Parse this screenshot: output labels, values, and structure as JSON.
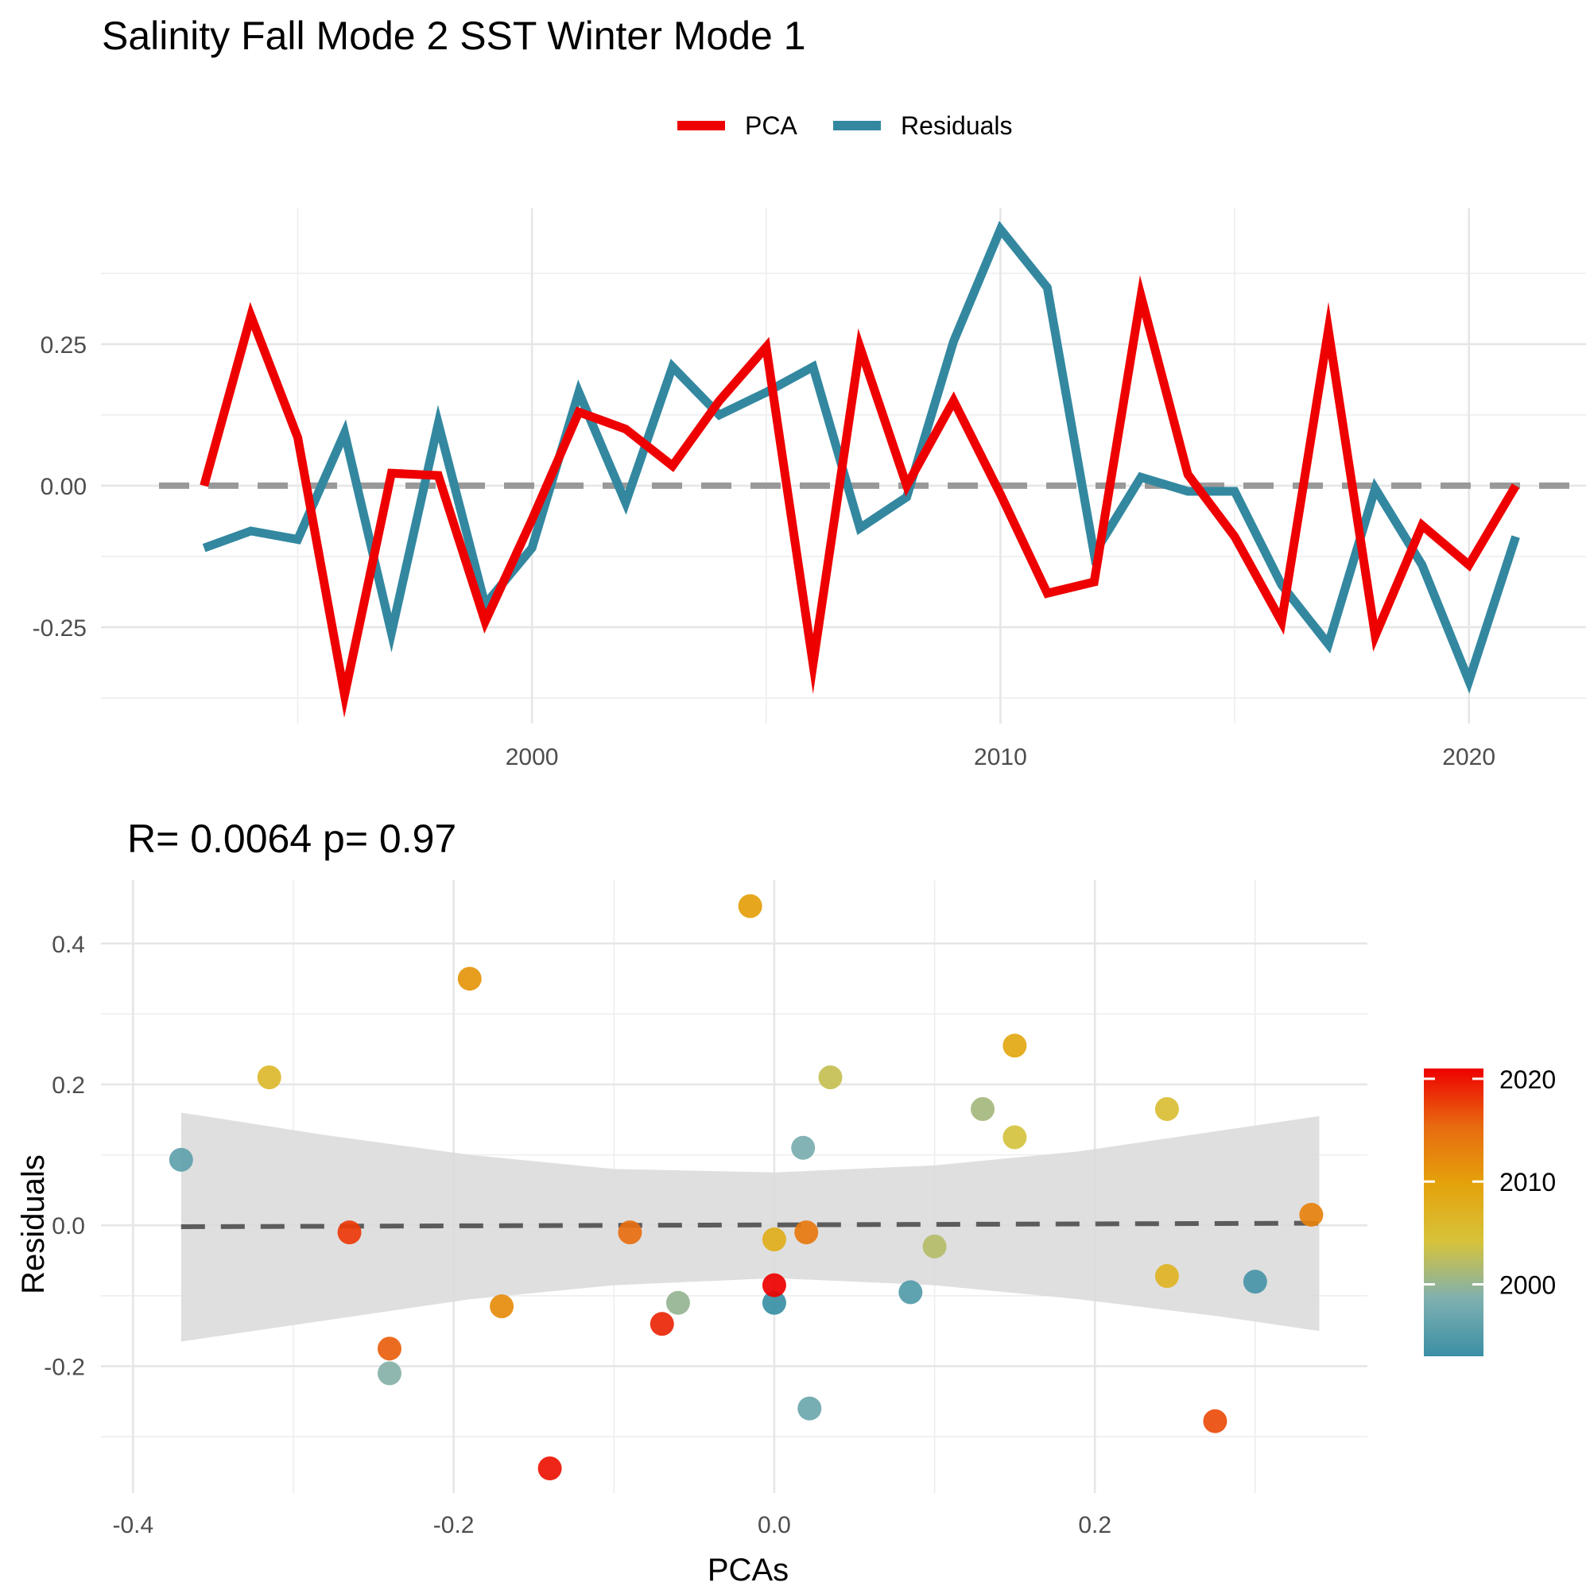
{
  "page_title": "Salinity Fall Mode 2 SST Winter Mode 1",
  "legend": {
    "items": [
      {
        "label": "PCA",
        "color": "#ee0000"
      },
      {
        "label": "Residuals",
        "color": "#3388a0"
      }
    ]
  },
  "stat_label": "R= 0.0064  p= 0.97",
  "colorbar": {
    "labels": [
      "2020",
      "2010",
      "2000"
    ],
    "values": [
      2020,
      2010,
      2000
    ],
    "range": [
      1993,
      2021
    ],
    "colors": [
      "#3a8fa5",
      "#7fb0b0",
      "#d7c33a",
      "#e4a20b",
      "#e86a10",
      "#ee0000"
    ]
  },
  "chart_data": [
    {
      "type": "line",
      "title": "",
      "xlabel": "",
      "ylabel": "",
      "x": [
        1993,
        1994,
        1995,
        1996,
        1997,
        1998,
        1999,
        2000,
        2001,
        2002,
        2003,
        2004,
        2005,
        2006,
        2007,
        2008,
        2009,
        2010,
        2011,
        2012,
        2013,
        2014,
        2015,
        2016,
        2017,
        2018,
        2019,
        2020,
        2021
      ],
      "xlim": [
        1990.8,
        2022.5
      ],
      "ylim": [
        -0.42,
        0.49
      ],
      "xticks": [
        2000,
        2010,
        2020
      ],
      "xtick_labels": [
        "2000",
        "2010",
        "2020"
      ],
      "yticks": [
        -0.25,
        0,
        0.25
      ],
      "ytick_labels": [
        "-0.25",
        "0.00",
        "0.25"
      ],
      "reference_line": 0,
      "grid": true,
      "legend_position": "top",
      "series": [
        {
          "name": "PCA",
          "color": "#ee0000",
          "values": [
            0.0,
            0.3,
            0.085,
            -0.37,
            0.022,
            0.018,
            -0.24,
            -0.06,
            0.13,
            0.1,
            0.035,
            0.15,
            0.245,
            -0.315,
            0.245,
            0.0,
            0.15,
            -0.015,
            -0.19,
            -0.17,
            0.335,
            0.02,
            -0.09,
            -0.24,
            0.275,
            -0.265,
            -0.07,
            -0.14,
            0.0
          ]
        },
        {
          "name": "Residuals",
          "color": "#3388a0",
          "values": [
            -0.11,
            -0.08,
            -0.095,
            0.093,
            -0.26,
            0.11,
            -0.21,
            -0.11,
            0.165,
            -0.03,
            0.21,
            0.125,
            0.165,
            0.21,
            -0.075,
            -0.02,
            0.255,
            0.453,
            0.35,
            -0.12,
            0.015,
            -0.01,
            -0.01,
            -0.175,
            -0.28,
            -0.005,
            -0.14,
            -0.345,
            -0.09
          ]
        }
      ]
    },
    {
      "type": "scatter",
      "title": "R= 0.0064  p= 0.97",
      "xlabel": "PCAs",
      "ylabel": "Residuals",
      "xlim": [
        -0.42,
        0.37
      ],
      "ylim": [
        -0.38,
        0.49
      ],
      "xticks": [
        -0.4,
        -0.2,
        0.0,
        0.2
      ],
      "xtick_labels": [
        "-0.4",
        "-0.2",
        "0.0",
        "0.2"
      ],
      "yticks": [
        -0.2,
        0.0,
        0.2,
        0.4
      ],
      "ytick_labels": [
        "-0.2",
        "0.0",
        "0.2",
        "0.4"
      ],
      "grid": true,
      "fit_line": {
        "x": [
          -0.37,
          0.34
        ],
        "y": [
          -0.002,
          0.003
        ]
      },
      "confidence_band": {
        "x": [
          -0.37,
          -0.28,
          -0.19,
          -0.1,
          0.0,
          0.1,
          0.19,
          0.28,
          0.34
        ],
        "upper": [
          0.16,
          0.128,
          0.1,
          0.08,
          0.075,
          0.085,
          0.105,
          0.135,
          0.155
        ],
        "lower": [
          -0.165,
          -0.135,
          -0.105,
          -0.085,
          -0.075,
          -0.085,
          -0.105,
          -0.13,
          -0.15
        ]
      },
      "points": [
        {
          "x": 0.0,
          "y": -0.11,
          "year": 1993
        },
        {
          "x": 0.3,
          "y": -0.08,
          "year": 1994
        },
        {
          "x": 0.085,
          "y": -0.095,
          "year": 1995
        },
        {
          "x": -0.37,
          "y": 0.093,
          "year": 1996
        },
        {
          "x": 0.022,
          "y": -0.26,
          "year": 1997
        },
        {
          "x": 0.018,
          "y": 0.11,
          "year": 1998
        },
        {
          "x": -0.24,
          "y": -0.21,
          "year": 1999
        },
        {
          "x": -0.06,
          "y": -0.11,
          "year": 2000
        },
        {
          "x": 0.13,
          "y": 0.165,
          "year": 2001
        },
        {
          "x": 0.1,
          "y": -0.03,
          "year": 2002
        },
        {
          "x": 0.035,
          "y": 0.21,
          "year": 2003
        },
        {
          "x": 0.15,
          "y": 0.125,
          "year": 2004
        },
        {
          "x": 0.245,
          "y": 0.165,
          "year": 2005
        },
        {
          "x": -0.315,
          "y": 0.21,
          "year": 2006
        },
        {
          "x": 0.245,
          "y": -0.072,
          "year": 2007
        },
        {
          "x": 0.0,
          "y": -0.02,
          "year": 2008
        },
        {
          "x": 0.15,
          "y": 0.255,
          "year": 2009
        },
        {
          "x": -0.015,
          "y": 0.453,
          "year": 2010
        },
        {
          "x": -0.19,
          "y": 0.35,
          "year": 2011
        },
        {
          "x": -0.17,
          "y": -0.115,
          "year": 2012
        },
        {
          "x": 0.335,
          "y": 0.015,
          "year": 2013
        },
        {
          "x": 0.02,
          "y": -0.01,
          "year": 2014
        },
        {
          "x": -0.09,
          "y": -0.01,
          "year": 2015
        },
        {
          "x": -0.24,
          "y": -0.175,
          "year": 2016
        },
        {
          "x": 0.275,
          "y": -0.278,
          "year": 2017
        },
        {
          "x": -0.265,
          "y": -0.01,
          "year": 2018
        },
        {
          "x": -0.07,
          "y": -0.14,
          "year": 2019
        },
        {
          "x": -0.14,
          "y": -0.345,
          "year": 2020
        },
        {
          "x": 0.0,
          "y": -0.085,
          "year": 2021
        }
      ]
    }
  ]
}
